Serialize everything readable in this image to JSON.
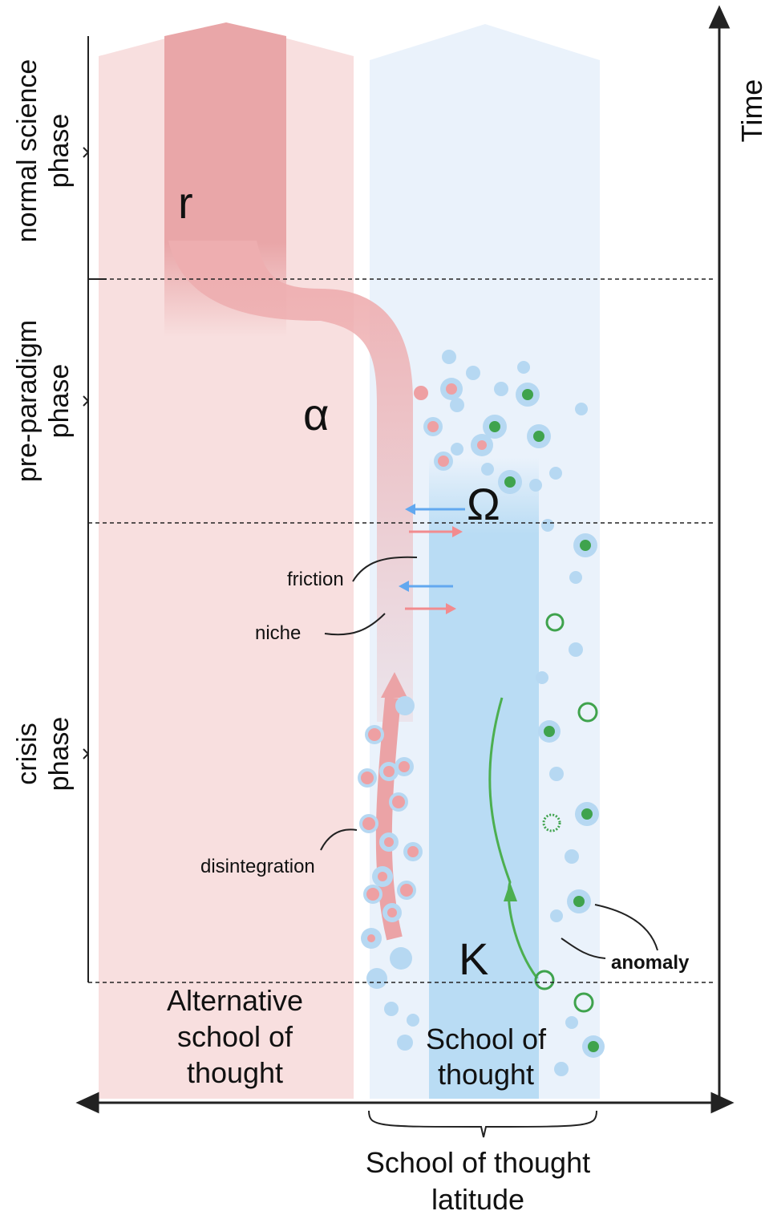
{
  "phases": [
    {
      "lines": [
        "normal science",
        "phase"
      ]
    },
    {
      "lines": [
        "pre-paradigm",
        "phase"
      ]
    },
    {
      "lines": [
        "crisis",
        "phase"
      ]
    }
  ],
  "axis": {
    "time": "Time",
    "latitude": [
      "School of thought",
      "latitude"
    ]
  },
  "symbols": {
    "r": "r",
    "alpha": "α",
    "omega": "Ω",
    "k": "K"
  },
  "annotations": {
    "friction": "friction",
    "niche": "niche",
    "disintegration": "disintegration",
    "anomaly": "anomaly"
  },
  "columns": {
    "alternative": [
      "Alternative",
      "school of",
      "thought"
    ],
    "school": [
      "School of",
      "thought"
    ]
  }
}
